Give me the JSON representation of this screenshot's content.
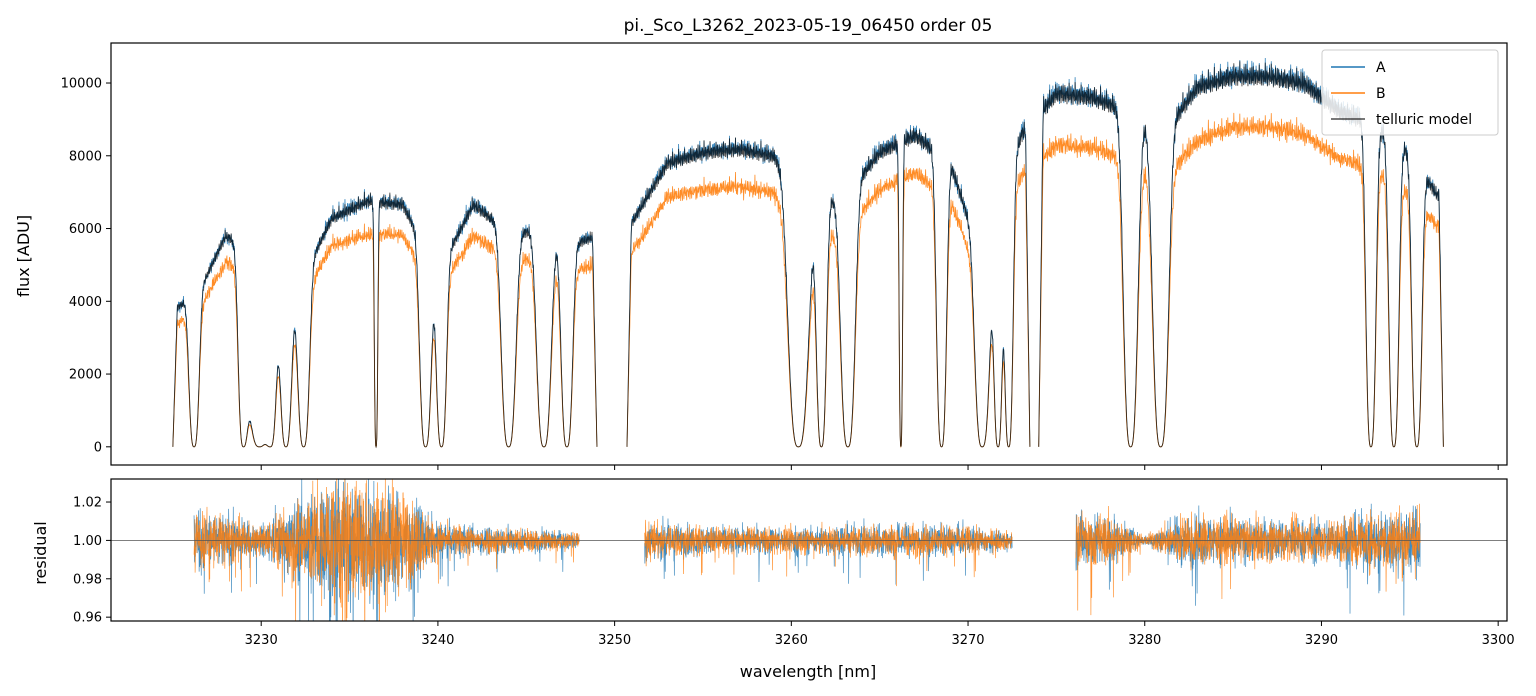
{
  "chart_data": {
    "type": "line",
    "title": "pi._Sco_L3262_2023-05-19_06450  order 05",
    "xlabel": "wavelength [nm]",
    "x_ticks": [
      "3230",
      "3240",
      "3250",
      "3260",
      "3270",
      "3280",
      "3290",
      "3300"
    ],
    "x_tick_values": [
      3230,
      3240,
      3250,
      3260,
      3270,
      3280,
      3290,
      3300
    ],
    "xlim": [
      3221.5,
      3300.5
    ],
    "panels": [
      {
        "name": "flux",
        "ylabel": "flux [ADU]",
        "ylim": [
          -500,
          11100
        ],
        "y_ticks": [
          "0",
          "2000",
          "4000",
          "6000",
          "8000",
          "10000"
        ],
        "y_tick_values": [
          0,
          2000,
          4000,
          6000,
          8000,
          10000
        ],
        "legend_position": "top-right",
        "series": [
          {
            "name": "A",
            "color": "#1f77b4"
          },
          {
            "name": "B",
            "color": "#ff7f0e"
          },
          {
            "name": "telluric model",
            "color": "#000000"
          }
        ],
        "segments": [
          {
            "x_start": 3225.0,
            "x_end": 3249.0
          },
          {
            "x_start": 3250.7,
            "x_end": 3273.5
          },
          {
            "x_start": 3274.0,
            "x_end": 3296.9
          }
        ],
        "continuum_A": {
          "x": [
            3225.2,
            3226.5,
            3228,
            3230,
            3232,
            3234,
            3236,
            3238,
            3240,
            3242,
            3244,
            3246,
            3248,
            3251,
            3253,
            3255,
            3257,
            3259,
            3261,
            3263,
            3265,
            3267,
            3269,
            3271,
            3273,
            3275,
            3277,
            3279,
            3281,
            3283,
            3285,
            3287,
            3289,
            3291,
            3293,
            3295,
            3296.5
          ],
          "values": [
            4000,
            4500,
            6100,
            5500,
            4500,
            6600,
            7100,
            7000,
            5000,
            7000,
            6200,
            6200,
            5900,
            6500,
            8200,
            8500,
            8600,
            8400,
            7000,
            7200,
            8500,
            9000,
            8200,
            5000,
            9000,
            10200,
            10100,
            9700,
            9000,
            10400,
            10700,
            10700,
            10500,
            9700,
            9300,
            8500,
            7300
          ]
        },
        "continuum_B": {
          "x": [
            3225.2,
            3226.5,
            3228,
            3230,
            3232,
            3234,
            3236,
            3238,
            3240,
            3242,
            3244,
            3246,
            3248,
            3251,
            3253,
            3255,
            3257,
            3259,
            3261,
            3263,
            3265,
            3267,
            3269,
            3271,
            3273,
            3275,
            3277,
            3279,
            3281,
            3283,
            3285,
            3287,
            3289,
            3291,
            3293,
            3295,
            3296.5
          ],
          "values": [
            3500,
            4000,
            5300,
            4800,
            3900,
            5800,
            6100,
            6100,
            4400,
            6100,
            5400,
            5400,
            5100,
            5600,
            7200,
            7400,
            7500,
            7300,
            6000,
            6200,
            7400,
            7900,
            7100,
            4400,
            7800,
            8700,
            8600,
            8300,
            7700,
            8800,
            9200,
            9200,
            9000,
            8300,
            8000,
            7300,
            6400
          ]
        },
        "telluric_lines_nm": [
          3226.2,
          3229.0,
          3229.9,
          3230.5,
          3231.4,
          3232.4,
          3236.5,
          3239.3,
          3240.2,
          3244.0,
          3246.0,
          3247.3,
          3260.4,
          3261.7,
          3263.2,
          3266.2,
          3268.5,
          3270.8,
          3271.7,
          3272.3,
          3279.2,
          3280.9,
          3292.8,
          3294.1,
          3295.4
        ],
        "line_widths_nm": [
          0.35,
          0.35,
          0.9,
          0.4,
          0.4,
          0.4,
          0.12,
          0.4,
          0.35,
          0.5,
          0.5,
          0.4,
          0.7,
          0.35,
          0.5,
          0.12,
          0.35,
          0.5,
          0.3,
          0.3,
          0.5,
          0.55,
          0.35,
          0.35,
          0.35
        ]
      },
      {
        "name": "residual",
        "ylabel": "residual",
        "ylim": [
          0.958,
          1.032
        ],
        "y_ticks": [
          "0.96",
          "0.98",
          "1.00",
          "1.02"
        ],
        "y_tick_values": [
          0.96,
          0.98,
          1.0,
          1.02
        ],
        "reference_line": 1.0,
        "segments": [
          {
            "x_start": 3226.2,
            "x_end": 3248.0
          },
          {
            "x_start": 3251.7,
            "x_end": 3272.5
          },
          {
            "x_start": 3276.1,
            "x_end": 3295.6
          }
        ],
        "noise_amplitude": {
          "x": [
            3226.2,
            3230,
            3232,
            3234,
            3236,
            3238,
            3240,
            3242,
            3246,
            3248,
            3251.7,
            3255,
            3258,
            3262,
            3266,
            3270,
            3272.5,
            3276.1,
            3278,
            3280,
            3282,
            3286,
            3290,
            3295.6
          ],
          "values": [
            0.025,
            0.01,
            0.03,
            0.045,
            0.045,
            0.035,
            0.012,
            0.01,
            0.008,
            0.006,
            0.014,
            0.01,
            0.009,
            0.01,
            0.012,
            0.01,
            0.006,
            0.02,
            0.018,
            0.003,
            0.018,
            0.015,
            0.015,
            0.025
          ]
        }
      }
    ]
  }
}
